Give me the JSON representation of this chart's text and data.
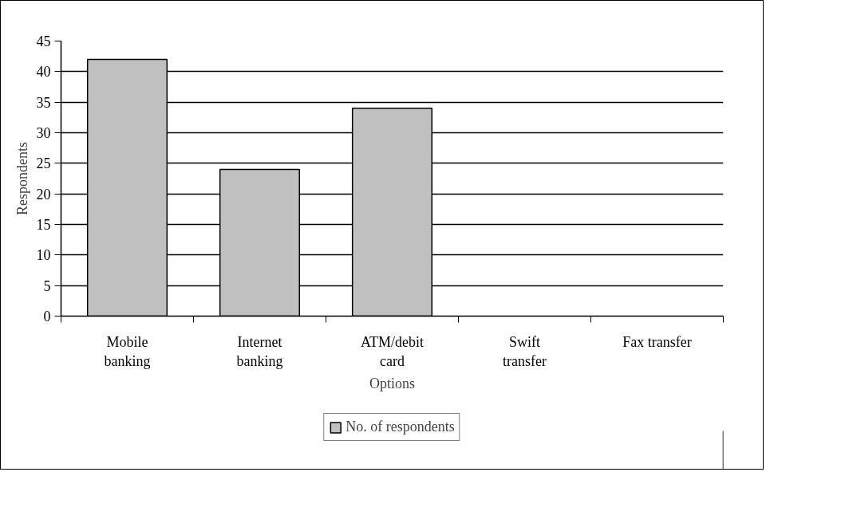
{
  "chart_data": {
    "type": "bar",
    "xlabel": "Options",
    "ylabel": "Respondents",
    "categories": [
      "Mobile\nbanking",
      "Internet\nbanking",
      "ATM/debit\ncard",
      "Swift\ntransfer",
      "Fax transfer"
    ],
    "series": [
      {
        "name": "No. of respondents",
        "color": "#c0c0c0",
        "values": [
          42,
          24,
          34,
          0,
          0
        ]
      }
    ],
    "ylim": [
      0,
      45
    ],
    "yticks": [
      0,
      5,
      10,
      15,
      20,
      25,
      30,
      35,
      40,
      45
    ],
    "grid": "y",
    "legend": "bottom"
  }
}
